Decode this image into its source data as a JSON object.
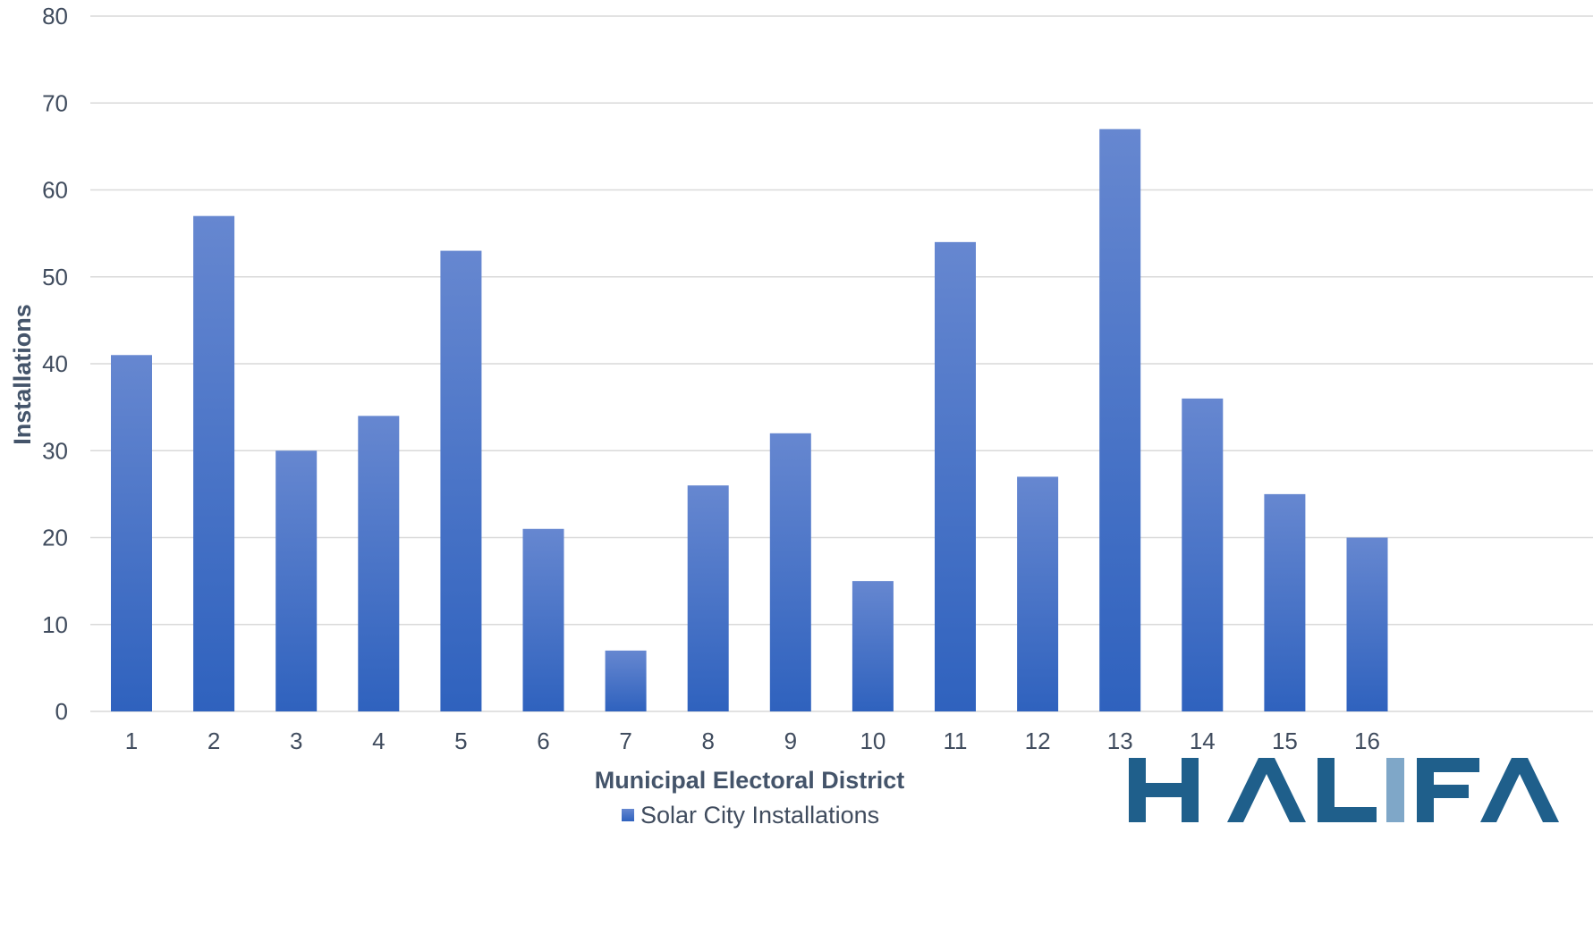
{
  "chart_data": {
    "type": "bar",
    "title": "",
    "xlabel": "Municipal Electoral District",
    "ylabel": "Installations",
    "categories": [
      "1",
      "2",
      "3",
      "4",
      "5",
      "6",
      "7",
      "8",
      "9",
      "10",
      "11",
      "12",
      "13",
      "14",
      "15",
      "16"
    ],
    "series": [
      {
        "name": "Solar City Installations",
        "values": [
          41,
          57,
          30,
          34,
          53,
          21,
          7,
          26,
          32,
          15,
          54,
          27,
          67,
          36,
          25,
          20
        ]
      }
    ],
    "ylim": [
      0,
      80
    ],
    "yticks": [
      0,
      10,
      20,
      30,
      40,
      50,
      60,
      70,
      80
    ],
    "grid": true,
    "legend_position": "bottom",
    "colors": {
      "bar_top": "#6687d0",
      "bar_bottom": "#2f62be",
      "logo_dark": "#1f5f8b",
      "logo_light": "#7fa7c8"
    }
  },
  "logo": {
    "text": "HALIFAX",
    "visible_text": "HALIFA"
  }
}
